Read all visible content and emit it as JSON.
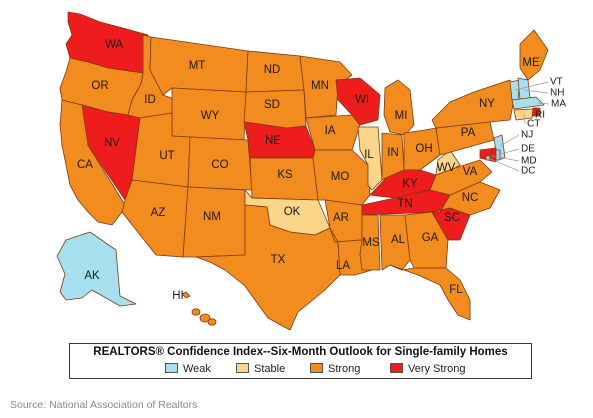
{
  "legend": {
    "title": "REALTORS® Confidence Index--Six-Month Outlook for Single-family Homes",
    "items": [
      {
        "label": "Weak",
        "color": "#a6dfee"
      },
      {
        "label": "Stable",
        "color": "#fbd68a"
      },
      {
        "label": "Strong",
        "color": "#f28c1e"
      },
      {
        "label": "Very Strong",
        "color": "#ee1c1c"
      }
    ]
  },
  "source": "Source: National Association of Realtors",
  "states": [
    {
      "abbr": "WA",
      "outlook": "Very Strong"
    },
    {
      "abbr": "OR",
      "outlook": "Strong"
    },
    {
      "abbr": "CA",
      "outlook": "Strong"
    },
    {
      "abbr": "NV",
      "outlook": "Very Strong"
    },
    {
      "abbr": "ID",
      "outlook": "Strong"
    },
    {
      "abbr": "MT",
      "outlook": "Strong"
    },
    {
      "abbr": "WY",
      "outlook": "Strong"
    },
    {
      "abbr": "UT",
      "outlook": "Strong"
    },
    {
      "abbr": "AZ",
      "outlook": "Strong"
    },
    {
      "abbr": "CO",
      "outlook": "Strong"
    },
    {
      "abbr": "NM",
      "outlook": "Strong"
    },
    {
      "abbr": "ND",
      "outlook": "Strong"
    },
    {
      "abbr": "SD",
      "outlook": "Strong"
    },
    {
      "abbr": "NE",
      "outlook": "Very Strong"
    },
    {
      "abbr": "KS",
      "outlook": "Strong"
    },
    {
      "abbr": "OK",
      "outlook": "Stable"
    },
    {
      "abbr": "TX",
      "outlook": "Strong"
    },
    {
      "abbr": "MN",
      "outlook": "Strong"
    },
    {
      "abbr": "IA",
      "outlook": "Strong"
    },
    {
      "abbr": "MO",
      "outlook": "Strong"
    },
    {
      "abbr": "AR",
      "outlook": "Strong"
    },
    {
      "abbr": "LA",
      "outlook": "Strong"
    },
    {
      "abbr": "WI",
      "outlook": "Very Strong"
    },
    {
      "abbr": "IL",
      "outlook": "Stable"
    },
    {
      "abbr": "MI",
      "outlook": "Strong"
    },
    {
      "abbr": "IN",
      "outlook": "Strong"
    },
    {
      "abbr": "OH",
      "outlook": "Strong"
    },
    {
      "abbr": "KY",
      "outlook": "Very Strong"
    },
    {
      "abbr": "TN",
      "outlook": "Very Strong"
    },
    {
      "abbr": "MS",
      "outlook": "Strong"
    },
    {
      "abbr": "AL",
      "outlook": "Strong"
    },
    {
      "abbr": "GA",
      "outlook": "Strong"
    },
    {
      "abbr": "FL",
      "outlook": "Strong"
    },
    {
      "abbr": "SC",
      "outlook": "Very Strong"
    },
    {
      "abbr": "NC",
      "outlook": "Strong"
    },
    {
      "abbr": "VA",
      "outlook": "Strong"
    },
    {
      "abbr": "WV",
      "outlook": "Stable"
    },
    {
      "abbr": "PA",
      "outlook": "Strong"
    },
    {
      "abbr": "NY",
      "outlook": "Strong"
    },
    {
      "abbr": "ME",
      "outlook": "Strong"
    },
    {
      "abbr": "VT",
      "outlook": "Weak"
    },
    {
      "abbr": "NH",
      "outlook": "Weak"
    },
    {
      "abbr": "MA",
      "outlook": "Weak"
    },
    {
      "abbr": "RI",
      "outlook": "Very Strong"
    },
    {
      "abbr": "CT",
      "outlook": "Stable"
    },
    {
      "abbr": "NJ",
      "outlook": "Weak"
    },
    {
      "abbr": "DE",
      "outlook": "Weak"
    },
    {
      "abbr": "MD",
      "outlook": "Very Strong"
    },
    {
      "abbr": "DC",
      "outlook": "Weak"
    },
    {
      "abbr": "AK",
      "outlook": "Weak"
    },
    {
      "abbr": "HI",
      "outlook": "Strong"
    }
  ]
}
